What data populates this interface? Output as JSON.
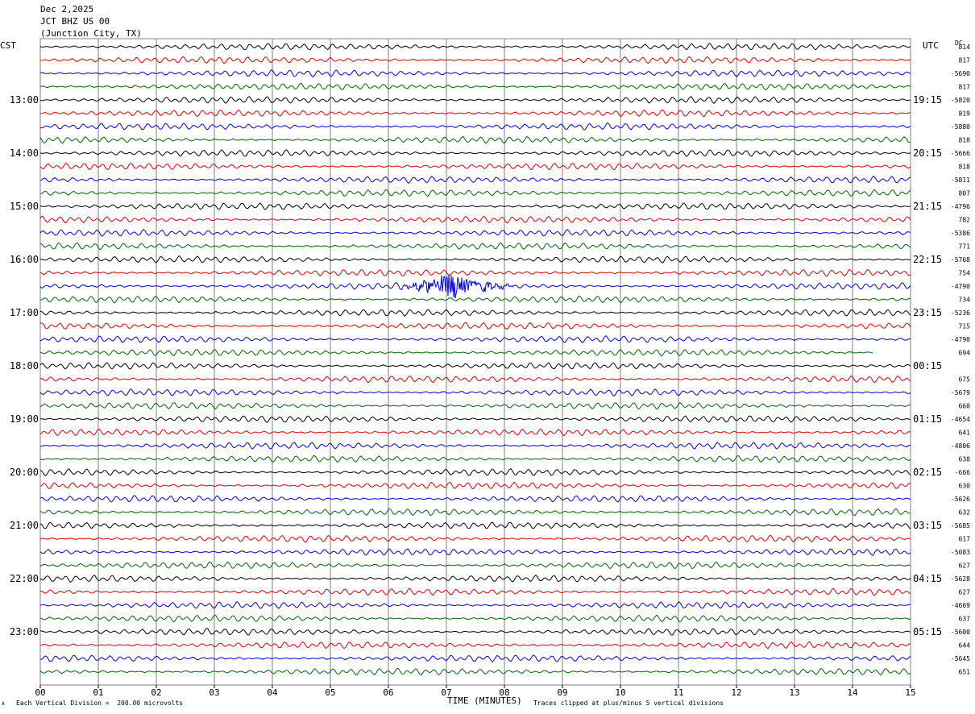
{
  "header": {
    "date": "Dec 2,2025",
    "station": "JCT BHZ US 00",
    "location": "(Junction City, TX)"
  },
  "left_zone": "CST",
  "right_zone": "UTC",
  "dc_label": "DC",
  "footer": {
    "vertical_division": "Each Vertical Division =  200.00 microvolts",
    "clip_note": "Traces clipped at plus/minus 5 vertical divisions",
    "corner_mark": "A"
  },
  "colors": {
    "trace": [
      "#000000",
      "#e00000",
      "#0000e0",
      "#006400"
    ],
    "grid": "#808080"
  },
  "chart_data": {
    "type": "line",
    "xlabel": "TIME (MINUTES)",
    "xlim": [
      0,
      15
    ],
    "x_ticks": [
      "00",
      "01",
      "02",
      "03",
      "04",
      "05",
      "06",
      "07",
      "08",
      "09",
      "10",
      "11",
      "12",
      "13",
      "14",
      "15"
    ],
    "left_hour_labels": [
      "13:00",
      "14:00",
      "15:00",
      "16:00",
      "17:00",
      "18:00",
      "19:00",
      "20:00",
      "21:00",
      "22:00",
      "23:00"
    ],
    "right_hour_labels": [
      "19:15",
      "20:15",
      "21:15",
      "22:15",
      "23:15",
      "00:15",
      "01:15",
      "02:15",
      "03:15",
      "04:15",
      "05:15"
    ],
    "hour_label_rows": [
      4,
      8,
      12,
      16,
      20,
      24,
      28,
      32,
      36,
      40,
      44
    ],
    "row_count": 48,
    "dc_offsets": [
      "814",
      "817",
      "-5690",
      "817",
      "-5820",
      "819",
      "-5880",
      "818",
      "-5666",
      "818",
      "-5811",
      "807",
      "-4796",
      "782",
      "-5386",
      "771",
      "-5768",
      "754",
      "-4790",
      "734",
      "-5236",
      "715",
      "-4790",
      "694",
      "",
      "675",
      "-5679",
      "660",
      "-4654",
      "641",
      "-4806",
      "638",
      "-666",
      "630",
      "-5626",
      "632",
      "-5685",
      "617",
      "-5083",
      "627",
      "-5628",
      "627",
      "-4669",
      "637",
      "-5600",
      "644",
      "-5645",
      "651"
    ],
    "events": [
      {
        "row": 18,
        "start_min": 6.0,
        "peak_min": 7.1,
        "end_min": 8.3,
        "peak_divisions": 2.0
      }
    ],
    "partial_row": {
      "row": 23,
      "end_min": 14.35
    }
  }
}
